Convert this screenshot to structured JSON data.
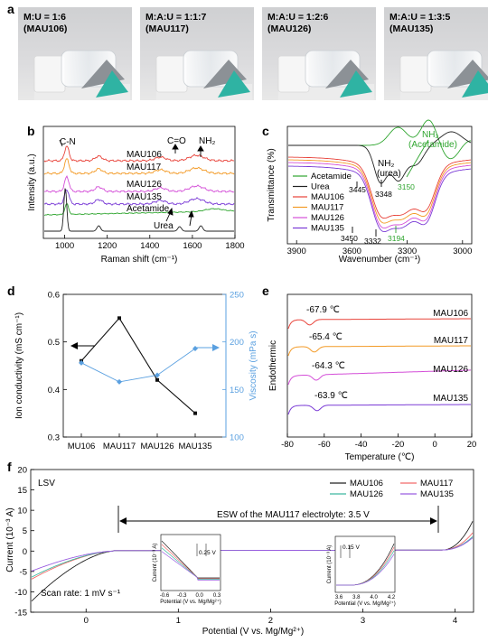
{
  "panels": {
    "a": {
      "label": "a",
      "photos": [
        {
          "line1": "M:U = 1:6",
          "line2": "(MAU106)"
        },
        {
          "line1": "M:A:U = 1:1:7",
          "line2": "(MAU117)"
        },
        {
          "line1": "M:A:U = 1:2:6",
          "line2": "(MAU126)"
        },
        {
          "line1": "M:A:U = 1:3:5",
          "line2": "(MAU135)"
        }
      ]
    },
    "b": {
      "label": "b",
      "xlabel": "Raman shift (cm⁻¹)",
      "ylabel": "Intensity (a.u.)",
      "xticks": [
        "1000",
        "1200",
        "1400",
        "1600",
        "1800"
      ],
      "annotations": {
        "cn": "C-N",
        "co": "C=O",
        "nh2": "NH₂"
      },
      "series": [
        {
          "name": "MAU106",
          "color": "#e8433a"
        },
        {
          "name": "MAU117",
          "color": "#f39a26"
        },
        {
          "name": "MAU126",
          "color": "#d44fd8"
        },
        {
          "name": "MAU135",
          "color": "#7a3ad6"
        },
        {
          "name": "Acetamide",
          "color": "#2fa52f"
        },
        {
          "name": "Urea",
          "color": "#222222"
        }
      ]
    },
    "c": {
      "label": "c",
      "xlabel": "Wavenumber (cm⁻¹)",
      "ylabel": "Transmittance (%)",
      "xticks": [
        "3900",
        "3600",
        "3300",
        "3000"
      ],
      "annotations": {
        "nh2_acetamide_1": "NH₂",
        "nh2_acetamide_2": "(Acetamide)",
        "nh2_urea_1": "NH₂",
        "nh2_urea_2": "(urea)",
        "p3445": "3445",
        "p3348": "3348",
        "p3150": "3150",
        "p3450": "3450",
        "p3332": "3332",
        "p3194": "3194"
      },
      "legend": [
        {
          "name": "Acetamide",
          "color": "#2fa52f"
        },
        {
          "name": "Urea",
          "color": "#222222"
        },
        {
          "name": "MAU106",
          "color": "#e8433a"
        },
        {
          "name": "MAU117",
          "color": "#f39a26"
        },
        {
          "name": "MAU126",
          "color": "#d44fd8"
        },
        {
          "name": "MAU135",
          "color": "#7a3ad6"
        }
      ]
    },
    "d": {
      "label": "d",
      "ylabel_left": "Ion conductivity (mS cm⁻¹)",
      "ylabel_right": "Viscosity (mPa s)",
      "yticks_left": [
        "0.3",
        "0.4",
        "0.5",
        "0.6"
      ],
      "yticks_right": [
        "100",
        "150",
        "200",
        "250"
      ]
    },
    "e": {
      "label": "e",
      "xlabel": "Temperature (℃)",
      "ylabel": "Endothermic",
      "xticks": [
        "-80",
        "-60",
        "-40",
        "-20",
        "0",
        "20"
      ],
      "traces": [
        {
          "name": "MAU106",
          "temp": "-67.9 ℃",
          "color": "#e8433a"
        },
        {
          "name": "MAU117",
          "temp": "-65.4 ℃",
          "color": "#f39a26"
        },
        {
          "name": "MAU126",
          "temp": "-64.3 ℃",
          "color": "#d44fd8"
        },
        {
          "name": "MAU135",
          "temp": "-63.9 ℃",
          "color": "#7a3ad6"
        }
      ]
    },
    "f": {
      "label": "f",
      "tag": "LSV",
      "xlabel": "Potential (V vs. Mg/Mg²⁺)",
      "ylabel": "Current (10⁻³ A)",
      "xticks": [
        "0",
        "1",
        "2",
        "3",
        "4"
      ],
      "yticks": [
        "-15",
        "-10",
        "-5",
        "0",
        "5",
        "10",
        "15",
        "20"
      ],
      "esw": "ESW of the MAU117 electrolyte: 3.5 V",
      "scan_rate": "Scan rate: 1 mV s⁻¹",
      "legend": [
        {
          "name": "MAU106",
          "color": "#222222"
        },
        {
          "name": "MAU117",
          "color": "#f26a6a"
        },
        {
          "name": "MAU126",
          "color": "#3fb8a0"
        },
        {
          "name": "MAU135",
          "color": "#9a5ee0"
        }
      ],
      "inset_left": {
        "gap": "0.25 V",
        "ylabel": "Current (10⁻³ A)",
        "xlabel": "Potential (V vs. Mg/Mg²⁺)",
        "xticks": [
          "-0.6",
          "-0.3",
          "0.0",
          "0.3"
        ]
      },
      "inset_right": {
        "gap": "0.15 V",
        "ylabel": "Current (10⁻³ A)",
        "xlabel": "Potential (V vs. Mg/Mg²⁺)",
        "xticks": [
          "3.6",
          "3.8",
          "4.0",
          "4.2"
        ]
      }
    }
  },
  "chart_data": [
    {
      "type": "line",
      "panel": "d",
      "categories": [
        "MU106",
        "MAU117",
        "MAU126",
        "MAU135"
      ],
      "series": [
        {
          "name": "Ion conductivity",
          "axis": "left",
          "color": "#111111",
          "values": [
            0.46,
            0.55,
            0.42,
            0.35
          ]
        },
        {
          "name": "Viscosity",
          "axis": "right",
          "color": "#5aa0e0",
          "values": [
            178,
            158,
            165,
            193
          ]
        }
      ],
      "ylim_left": [
        0.3,
        0.6
      ],
      "ylim_right": [
        100,
        250
      ]
    }
  ]
}
